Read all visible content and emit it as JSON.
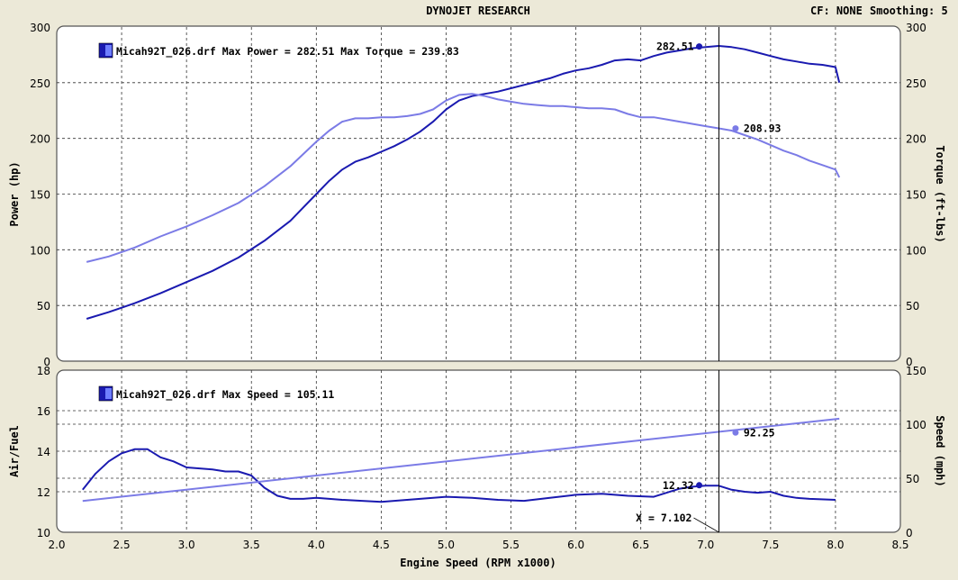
{
  "header": {
    "title": "DYNOJET RESEARCH",
    "cf": "CF: NONE",
    "smoothing": "Smoothing: 5"
  },
  "chart_data": [
    {
      "type": "line",
      "legend": "Micah92T_026.drf Max Power = 282.51 Max Torque = 239.83",
      "ylabel": "Power (hp)",
      "y2label": "Torque (ft-lbs)",
      "xlim": [
        2.0,
        8.5
      ],
      "ylim": [
        0,
        300
      ],
      "y2lim": [
        0,
        300
      ],
      "yticks": [
        "0",
        "50",
        "100",
        "150",
        "200",
        "250",
        "300"
      ],
      "y2ticks": [
        "0",
        "50",
        "100",
        "150",
        "200",
        "250",
        "300"
      ],
      "grid": true,
      "cursor_x": 7.102,
      "series": [
        {
          "axis": "left",
          "color": "#1a1ab0",
          "x": [
            2.23,
            2.4,
            2.6,
            2.8,
            3.0,
            3.2,
            3.4,
            3.6,
            3.8,
            3.9,
            4.0,
            4.1,
            4.2,
            4.3,
            4.4,
            4.5,
            4.6,
            4.7,
            4.8,
            4.9,
            5.0,
            5.1,
            5.2,
            5.3,
            5.4,
            5.5,
            5.6,
            5.7,
            5.8,
            5.9,
            6.0,
            6.1,
            6.2,
            6.3,
            6.4,
            6.5,
            6.6,
            6.7,
            6.8,
            6.9,
            7.0,
            7.1,
            7.2,
            7.3,
            7.4,
            7.5,
            7.6,
            7.7,
            7.8,
            7.9,
            8.0,
            8.03
          ],
          "values": [
            38,
            44,
            52,
            61,
            71,
            81,
            93,
            108,
            126,
            138,
            150,
            162,
            172,
            179,
            183,
            188,
            193,
            199,
            206,
            215,
            226,
            234,
            238,
            240,
            242,
            245,
            248,
            251,
            254,
            258,
            261,
            263,
            266,
            270,
            271,
            270,
            274,
            277,
            279,
            281,
            282,
            283,
            282,
            280,
            277,
            274,
            271,
            269,
            267,
            266,
            264,
            250
          ]
        },
        {
          "axis": "right",
          "color": "#7b7be6",
          "x": [
            2.23,
            2.4,
            2.6,
            2.8,
            3.0,
            3.2,
            3.4,
            3.6,
            3.8,
            3.9,
            4.0,
            4.1,
            4.2,
            4.3,
            4.4,
            4.5,
            4.6,
            4.7,
            4.8,
            4.9,
            5.0,
            5.1,
            5.2,
            5.3,
            5.4,
            5.5,
            5.6,
            5.7,
            5.8,
            5.9,
            6.0,
            6.1,
            6.2,
            6.3,
            6.4,
            6.5,
            6.6,
            6.7,
            6.8,
            6.9,
            7.0,
            7.1,
            7.2,
            7.3,
            7.4,
            7.5,
            7.6,
            7.7,
            7.8,
            7.9,
            8.0,
            8.03
          ],
          "values": [
            89,
            94,
            102,
            112,
            121,
            131,
            142,
            157,
            175,
            186,
            197,
            207,
            215,
            218,
            218,
            219,
            219,
            220,
            222,
            226,
            234,
            239,
            240,
            238,
            235,
            233,
            231,
            230,
            229,
            229,
            228,
            227,
            227,
            226,
            222,
            219,
            219,
            217,
            215,
            213,
            211,
            209,
            207,
            203,
            199,
            194,
            189,
            185,
            180,
            176,
            172,
            165
          ]
        }
      ],
      "annotations": [
        {
          "text": "282.51",
          "x": 6.95,
          "y": 282.51,
          "color": "#1a1ab0"
        },
        {
          "text": "208.93",
          "x": 7.23,
          "y": 208.93,
          "color": "#7b7be6"
        }
      ]
    },
    {
      "type": "line",
      "legend": "Micah92T_026.drf Max Speed = 105.11",
      "xlabel": "Engine Speed (RPM x1000)",
      "ylabel": "Air/Fuel",
      "y2label": "Speed (mph)",
      "xlim": [
        2.0,
        8.5
      ],
      "xticks": [
        "2.0",
        "2.5",
        "3.0",
        "3.5",
        "4.0",
        "4.5",
        "5.0",
        "5.5",
        "6.0",
        "6.5",
        "7.0",
        "7.5",
        "8.0",
        "8.5"
      ],
      "ylim": [
        10,
        18
      ],
      "y2lim": [
        0,
        150
      ],
      "yticks": [
        "10",
        "12",
        "14",
        "16",
        "18"
      ],
      "y2ticks": [
        "0",
        "50",
        "100",
        "150"
      ],
      "grid": true,
      "cursor_x": 7.102,
      "cursor_label": "X = 7.102",
      "series": [
        {
          "axis": "left",
          "color": "#1a1ab0",
          "x": [
            2.2,
            2.3,
            2.4,
            2.5,
            2.6,
            2.7,
            2.8,
            2.9,
            3.0,
            3.1,
            3.2,
            3.3,
            3.4,
            3.5,
            3.6,
            3.7,
            3.8,
            3.9,
            4.0,
            4.2,
            4.5,
            4.8,
            5.0,
            5.2,
            5.4,
            5.6,
            5.8,
            6.0,
            6.2,
            6.4,
            6.6,
            6.7,
            6.8,
            6.9,
            7.0,
            7.1,
            7.2,
            7.3,
            7.4,
            7.5,
            7.6,
            7.7,
            7.8,
            8.0
          ],
          "values": [
            12.1,
            12.9,
            13.5,
            13.9,
            14.1,
            14.1,
            13.7,
            13.5,
            13.2,
            13.15,
            13.1,
            13.0,
            13.0,
            12.8,
            12.2,
            11.8,
            11.65,
            11.65,
            11.7,
            11.6,
            11.5,
            11.65,
            11.75,
            11.7,
            11.6,
            11.55,
            11.7,
            11.85,
            11.9,
            11.8,
            11.75,
            11.95,
            12.15,
            12.25,
            12.3,
            12.3,
            12.1,
            12.0,
            11.95,
            12.0,
            11.8,
            11.7,
            11.65,
            11.6
          ]
        },
        {
          "axis": "right",
          "color": "#7b7be6",
          "x": [
            2.2,
            8.03
          ],
          "values": [
            29,
            105.11
          ]
        }
      ],
      "annotations": [
        {
          "text": "12.32",
          "x": 6.95,
          "y": 12.32,
          "color": "#1a1ab0"
        },
        {
          "text": "92.25",
          "x": 7.23,
          "y": 92.25,
          "color": "#7b7be6"
        }
      ]
    }
  ]
}
